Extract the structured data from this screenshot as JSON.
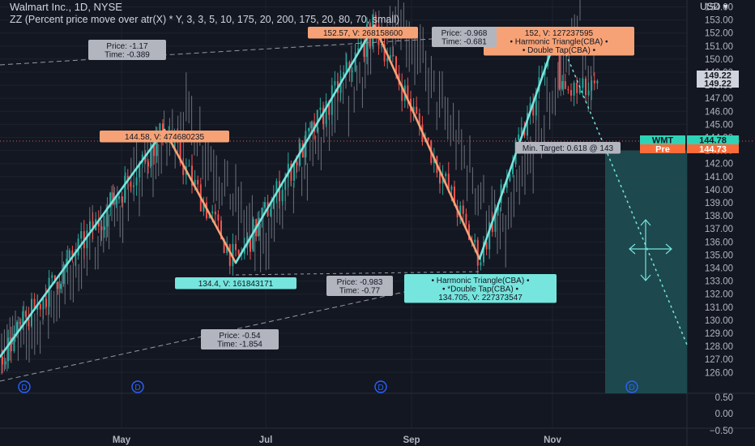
{
  "legend": {
    "symbol_line": "Walmart Inc., 1D, NYSE",
    "indicator_line": "ZZ (Percent price move over atr(X) * Y, 3, 3, 5, 10, 175, 20, 200, 175, 20, 80, 70, small)"
  },
  "axis": {
    "currency_label": "USD ▾",
    "price_ticks": [
      "154.00",
      "153.00",
      "152.00",
      "151.00",
      "150.00",
      "149.00",
      "148.00",
      "147.00",
      "146.00",
      "145.00",
      "144.00",
      "143.00",
      "142.00",
      "141.00",
      "140.00",
      "139.00",
      "138.00",
      "137.00",
      "136.00",
      "135.00",
      "134.00",
      "133.00",
      "132.00",
      "131.00",
      "130.00",
      "129.00",
      "128.00",
      "127.00",
      "126.00"
    ],
    "pane_ticks": [
      "0.50",
      "0.00",
      "−0.50"
    ],
    "time_ticks": [
      "May",
      "Jul",
      "Sep",
      "Nov"
    ]
  },
  "price_labels": [
    {
      "text": "149.22",
      "kind": "last"
    },
    {
      "text": "149.22",
      "kind": "last"
    },
    {
      "text": "WMT",
      "kind": "symbol"
    },
    {
      "text": "144.78",
      "kind": "symbol"
    },
    {
      "text": "Pre",
      "kind": "pre"
    },
    {
      "text": "144.73",
      "kind": "pre"
    }
  ],
  "colors": {
    "background": "#131722",
    "up_candle": "#26a69a",
    "down_candle": "#ef5350",
    "ghost_candle": "#8a8e99",
    "zigzag_up": "#76e5dd",
    "zigzag_down": "#f7a276",
    "peak_label": "#f7a276",
    "trough_label": "#76e5dd",
    "ratio_label": "#b2b5be",
    "target_zone": "#1f4e52",
    "last_price_label": "#d1d4dc",
    "symbol_label": "#2ed3b7",
    "pre_label": "#fb6b3a"
  },
  "pivot_labels": [
    {
      "name": "peak-label-may",
      "kind": "peak",
      "lines": [
        "144.58, V: 474680235"
      ]
    },
    {
      "name": "peak-label-aug",
      "kind": "peak",
      "lines": [
        "152.57, V: 268158600"
      ]
    },
    {
      "name": "peak-label-oct",
      "kind": "peak",
      "lines": [
        "152, V: 127237595",
        "• Harmonic Triangle(CBA) •",
        "• Double Tap(CBA) •"
      ]
    },
    {
      "name": "trough-label-jun",
      "kind": "trough",
      "lines": [
        "134.4, V: 161843171"
      ]
    },
    {
      "name": "trough-label-sep",
      "kind": "trough",
      "lines": [
        "• Harmonic Triangle(CBA) •",
        "• *Double Tap(CBA) •",
        "134.705, V: 227373547"
      ]
    },
    {
      "name": "ratio-label-1",
      "kind": "ratio",
      "lines": [
        "Price: -1.17",
        "Time: -0.389"
      ]
    },
    {
      "name": "ratio-label-2",
      "kind": "ratio",
      "lines": [
        "Price: -0.968",
        "Time: -0.681"
      ]
    },
    {
      "name": "ratio-label-3",
      "kind": "ratio",
      "lines": [
        "Price: -0.983",
        "Time: -0.77"
      ]
    },
    {
      "name": "ratio-label-4",
      "kind": "ratio",
      "lines": [
        "Price: -0.54",
        "Time: -1.854"
      ]
    },
    {
      "name": "target-label",
      "kind": "target",
      "lines": [
        "Min. Target: 0.618 @ 143"
      ]
    }
  ],
  "dividend_marker": "D",
  "chart_data": {
    "type": "candlestick",
    "symbol": "WMT",
    "exchange": "NYSE",
    "interval": "1D",
    "y_range": [
      126,
      154
    ],
    "pane_y_range": [
      -0.5,
      0.5
    ],
    "x_ticks": [
      "May",
      "Jul",
      "Sep",
      "Nov"
    ],
    "last_price": 149.22,
    "current_price": 144.78,
    "premarket_price": 144.73,
    "zigzag_pivots": [
      {
        "date": "Mar",
        "price": 127.2
      },
      {
        "date": "May",
        "price": 144.58
      },
      {
        "date": "Jun",
        "price": 134.4
      },
      {
        "date": "Aug",
        "price": 152.57
      },
      {
        "date": "Sep",
        "price": 134.705
      },
      {
        "date": "Oct",
        "price": 152.0
      }
    ],
    "min_target_ratio": 0.618,
    "min_target_price": 143
  }
}
